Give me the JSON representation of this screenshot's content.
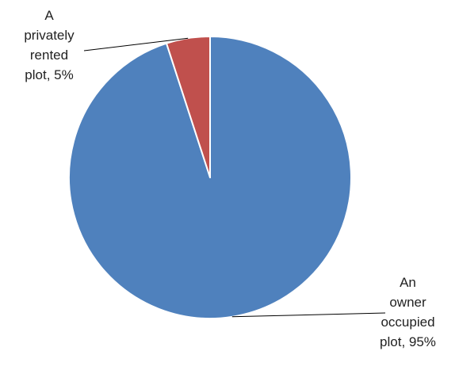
{
  "chart_data": {
    "type": "pie",
    "title": "",
    "slices": [
      {
        "label": "An owner occupied plot",
        "value": 95,
        "display_lines": [
          "An",
          "owner",
          "occupied",
          "plot, 95%"
        ],
        "color": "#4F81BD"
      },
      {
        "label": "A privately rented plot",
        "value": 5,
        "display_lines": [
          "A",
          "privately",
          "rented",
          "plot, 5%"
        ],
        "color": "#C0504D"
      }
    ],
    "legend": "none",
    "data_labels": "outside-with-leader-lines"
  }
}
